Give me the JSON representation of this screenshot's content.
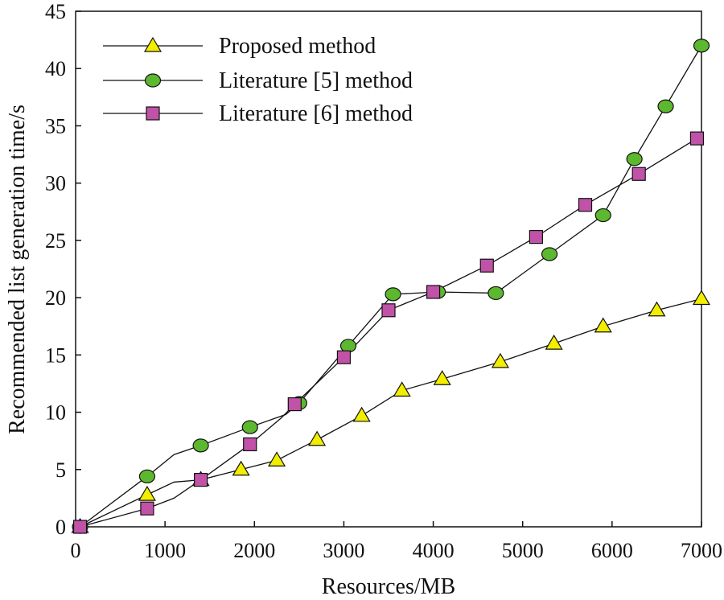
{
  "chart_data": {
    "type": "line",
    "title": "",
    "xlabel": "Resources/MB",
    "ylabel": "Recommended list generation time/s",
    "xlim": [
      0,
      7000
    ],
    "ylim": [
      0,
      45
    ],
    "xticks": [
      0,
      1000,
      2000,
      3000,
      4000,
      5000,
      6000,
      7000
    ],
    "yticks": [
      0,
      5,
      10,
      15,
      20,
      25,
      30,
      35,
      40,
      45
    ],
    "grid": false,
    "legend_position": "top-left",
    "series": [
      {
        "name": "Proposed method",
        "marker": "triangle",
        "marker_color": "#f2ee00",
        "x": [
          50,
          800,
          1400,
          1850,
          2250,
          2700,
          3200,
          3650,
          4100,
          4750,
          5350,
          5900,
          6500,
          7000
        ],
        "y": [
          0,
          2.8,
          4.1,
          5.0,
          5.8,
          7.6,
          9.7,
          11.9,
          12.9,
          14.4,
          16.0,
          17.5,
          18.9,
          19.9
        ],
        "line_x": [
          50,
          800,
          1100,
          1400,
          1850,
          2250,
          2700,
          3200,
          3650,
          4100,
          4750,
          5350,
          5900,
          6500,
          7000
        ],
        "line_y": [
          0,
          2.8,
          3.9,
          4.1,
          5.0,
          5.8,
          7.6,
          9.7,
          11.9,
          12.9,
          14.4,
          16.0,
          17.5,
          18.9,
          19.9
        ]
      },
      {
        "name": "Literature [5] method",
        "marker": "circle",
        "marker_color": "#5cb82e",
        "x": [
          50,
          800,
          1400,
          1950,
          2500,
          3050,
          3550,
          4050,
          4700,
          5300,
          5900,
          6250,
          6600,
          7000
        ],
        "y": [
          0,
          4.4,
          7.1,
          8.7,
          10.8,
          15.8,
          20.3,
          20.5,
          20.4,
          23.8,
          27.2,
          32.1,
          36.7,
          42.0
        ],
        "line_x": [
          50,
          800,
          1100,
          1400,
          1950,
          2350,
          2500,
          3050,
          3550,
          4050,
          4700,
          5300,
          5900,
          6250,
          6600,
          7000
        ],
        "line_y": [
          0,
          4.4,
          6.3,
          7.1,
          8.7,
          9.8,
          10.8,
          15.8,
          20.3,
          20.5,
          20.4,
          23.8,
          27.2,
          32.1,
          36.7,
          42.0
        ]
      },
      {
        "name": "Literature [6] method",
        "marker": "square",
        "marker_color": "#c052a8",
        "x": [
          50,
          800,
          1400,
          1950,
          2450,
          3000,
          3500,
          4000,
          4600,
          5150,
          5700,
          6300,
          6950
        ],
        "y": [
          0,
          1.6,
          4.1,
          7.2,
          10.7,
          14.8,
          18.9,
          20.5,
          22.8,
          25.3,
          28.1,
          30.8,
          33.9
        ],
        "line_x": [
          50,
          800,
          1100,
          1400,
          1950,
          2300,
          2450,
          3000,
          3500,
          4000,
          4600,
          5150,
          5700,
          6300,
          6950
        ],
        "line_y": [
          0,
          1.6,
          2.5,
          4.1,
          7.2,
          9.5,
          10.7,
          14.8,
          18.9,
          20.5,
          22.8,
          25.3,
          28.1,
          30.8,
          33.9
        ]
      }
    ]
  }
}
